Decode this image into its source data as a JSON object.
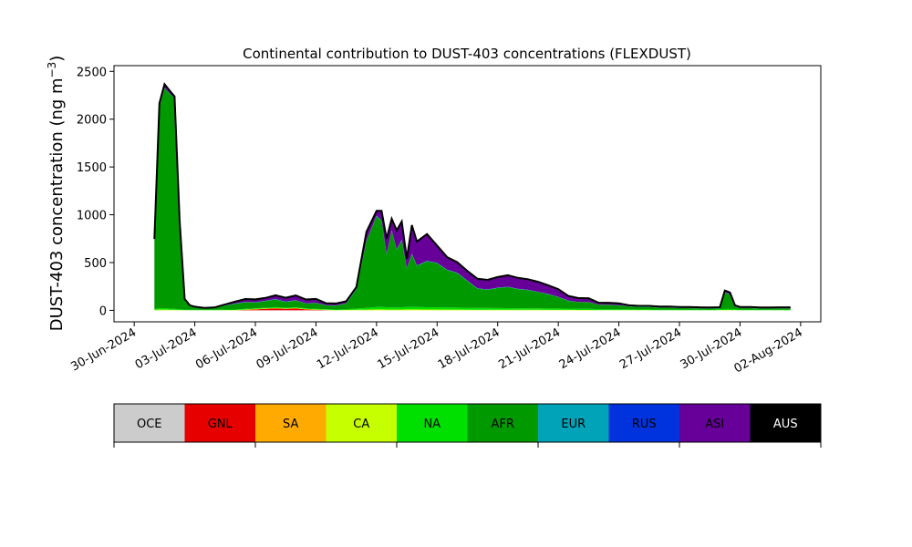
{
  "chart_data": {
    "type": "area",
    "stacked": true,
    "title": "Continental contribution to DUST-403 concentrations (FLEXDUST)",
    "ylabel": "DUST-403 concentration (ng m",
    "ylabel_unit_superscript": "−3",
    "ylabel_unit_close": ")",
    "xlim": [
      "2024-06-29",
      "2024-08-03"
    ],
    "ylim": [
      -120,
      2560
    ],
    "yticks": [
      0,
      500,
      1000,
      1500,
      2000,
      2500
    ],
    "xticks": [
      "2024-06-30",
      "2024-07-03",
      "2024-07-06",
      "2024-07-09",
      "2024-07-12",
      "2024-07-15",
      "2024-07-18",
      "2024-07-21",
      "2024-07-24",
      "2024-07-27",
      "2024-07-30",
      "2024-08-02"
    ],
    "xtick_labels": [
      "30-Jun-2024",
      "03-Jul-2024",
      "06-Jul-2024",
      "09-Jul-2024",
      "12-Jul-2024",
      "15-Jul-2024",
      "18-Jul-2024",
      "21-Jul-2024",
      "24-Jul-2024",
      "27-Jul-2024",
      "30-Jul-2024",
      "02-Aug-2024"
    ],
    "grid": false,
    "x": [
      "2024-07-01",
      "2024-07-01 06:00",
      "2024-07-01 12:00",
      "2024-07-01 18:00",
      "2024-07-02",
      "2024-07-02 06:00",
      "2024-07-02 12:00",
      "2024-07-02 18:00",
      "2024-07-03",
      "2024-07-03 06:00",
      "2024-07-03 12:00",
      "2024-07-04",
      "2024-07-04 12:00",
      "2024-07-05",
      "2024-07-05 12:00",
      "2024-07-06",
      "2024-07-06 12:00",
      "2024-07-07",
      "2024-07-07 12:00",
      "2024-07-08",
      "2024-07-08 12:00",
      "2024-07-09",
      "2024-07-09 12:00",
      "2024-07-10",
      "2024-07-10 12:00",
      "2024-07-11",
      "2024-07-11 12:00",
      "2024-07-12",
      "2024-07-12 06:00",
      "2024-07-12 12:00",
      "2024-07-12 18:00",
      "2024-07-13",
      "2024-07-13 06:00",
      "2024-07-13 12:00",
      "2024-07-13 18:00",
      "2024-07-14",
      "2024-07-14 12:00",
      "2024-07-15",
      "2024-07-15 12:00",
      "2024-07-16",
      "2024-07-16 12:00",
      "2024-07-17",
      "2024-07-17 12:00",
      "2024-07-18",
      "2024-07-18 12:00",
      "2024-07-19",
      "2024-07-19 12:00",
      "2024-07-20",
      "2024-07-20 12:00",
      "2024-07-21",
      "2024-07-21 12:00",
      "2024-07-22",
      "2024-07-22 12:00",
      "2024-07-23",
      "2024-07-23 12:00",
      "2024-07-24",
      "2024-07-24 12:00",
      "2024-07-25",
      "2024-07-25 12:00",
      "2024-07-26",
      "2024-07-26 12:00",
      "2024-07-27",
      "2024-07-27 12:00",
      "2024-07-28",
      "2024-07-28 12:00",
      "2024-07-29",
      "2024-07-29 06:00",
      "2024-07-29 12:00",
      "2024-07-29 18:00",
      "2024-07-30",
      "2024-07-30 12:00",
      "2024-07-31",
      "2024-07-31 12:00",
      "2024-08-01",
      "2024-08-01 12:00"
    ],
    "series": [
      {
        "name": "OCE",
        "color": "#cccccc",
        "values": [
          0,
          0,
          0,
          0,
          0,
          0,
          0,
          0,
          0,
          0,
          0,
          0,
          0,
          0,
          0,
          0,
          0,
          0,
          0,
          0,
          0,
          0,
          0,
          0,
          0,
          0,
          0,
          0,
          0,
          0,
          0,
          0,
          0,
          0,
          0,
          0,
          0,
          0,
          0,
          0,
          0,
          0,
          0,
          0,
          0,
          0,
          0,
          0,
          0,
          0,
          0,
          0,
          0,
          0,
          0,
          0,
          0,
          0,
          0,
          0,
          0,
          0,
          0,
          0,
          0,
          0,
          0,
          0,
          0,
          0,
          0,
          0,
          0,
          0,
          0
        ]
      },
      {
        "name": "GNL",
        "color": "#e60000",
        "values": [
          0,
          0,
          0,
          0,
          0,
          0,
          0,
          0,
          0,
          0,
          0,
          0,
          0,
          0,
          5,
          10,
          15,
          20,
          15,
          20,
          10,
          5,
          3,
          0,
          0,
          0,
          0,
          0,
          0,
          0,
          0,
          0,
          0,
          0,
          0,
          0,
          0,
          0,
          0,
          0,
          0,
          0,
          0,
          0,
          0,
          0,
          0,
          0,
          0,
          0,
          0,
          0,
          0,
          0,
          0,
          0,
          0,
          0,
          0,
          0,
          0,
          0,
          0,
          0,
          0,
          0,
          0,
          0,
          0,
          0,
          0,
          0,
          0,
          0,
          0
        ]
      },
      {
        "name": "SA",
        "color": "#ffaa00",
        "values": [
          0,
          0,
          0,
          0,
          0,
          0,
          0,
          0,
          0,
          0,
          0,
          0,
          0,
          0,
          0,
          0,
          0,
          0,
          0,
          0,
          0,
          0,
          0,
          0,
          0,
          0,
          0,
          0,
          0,
          0,
          0,
          0,
          0,
          0,
          0,
          0,
          0,
          0,
          0,
          0,
          0,
          0,
          0,
          0,
          0,
          0,
          0,
          0,
          0,
          0,
          0,
          0,
          0,
          0,
          0,
          0,
          0,
          0,
          0,
          0,
          0,
          0,
          0,
          0,
          0,
          0,
          0,
          0,
          0,
          0,
          0,
          0,
          0,
          0,
          0
        ]
      },
      {
        "name": "CA",
        "color": "#c6ff00",
        "values": [
          5,
          8,
          8,
          6,
          5,
          4,
          3,
          2,
          2,
          2,
          2,
          2,
          3,
          3,
          4,
          5,
          5,
          6,
          5,
          5,
          4,
          4,
          3,
          3,
          4,
          6,
          8,
          10,
          10,
          9,
          8,
          8,
          9,
          10,
          10,
          10,
          9,
          9,
          8,
          8,
          7,
          7,
          7,
          6,
          6,
          6,
          6,
          6,
          5,
          5,
          5,
          4,
          4,
          3,
          3,
          3,
          3,
          3,
          3,
          2,
          2,
          2,
          2,
          2,
          2,
          3,
          4,
          4,
          3,
          2,
          2,
          2,
          2,
          2,
          2
        ]
      },
      {
        "name": "NA",
        "color": "#00e000",
        "values": [
          10,
          15,
          15,
          12,
          10,
          8,
          6,
          5,
          5,
          5,
          5,
          5,
          6,
          6,
          6,
          7,
          7,
          8,
          8,
          8,
          7,
          7,
          6,
          6,
          8,
          12,
          18,
          25,
          25,
          24,
          24,
          23,
          24,
          25,
          26,
          25,
          24,
          23,
          22,
          21,
          20,
          19,
          18,
          18,
          17,
          16,
          16,
          15,
          14,
          14,
          13,
          12,
          11,
          10,
          9,
          8,
          8,
          7,
          7,
          6,
          6,
          6,
          6,
          6,
          6,
          8,
          10,
          10,
          8,
          6,
          6,
          6,
          6,
          6,
          6
        ]
      },
      {
        "name": "AFR",
        "color": "#009900",
        "values": [
          700,
          2100,
          2300,
          2250,
          2200,
          900,
          100,
          40,
          25,
          20,
          15,
          20,
          40,
          60,
          70,
          60,
          70,
          80,
          60,
          70,
          50,
          60,
          40,
          40,
          60,
          200,
          700,
          950,
          900,
          550,
          800,
          600,
          700,
          400,
          550,
          430,
          480,
          460,
          390,
          360,
          280,
          200,
          190,
          210,
          220,
          200,
          190,
          170,
          150,
          120,
          80,
          70,
          70,
          45,
          45,
          40,
          30,
          25,
          25,
          20,
          20,
          15,
          15,
          12,
          10,
          10,
          170,
          150,
          30,
          15,
          15,
          10,
          10,
          12,
          12
        ]
      },
      {
        "name": "EUR",
        "color": "#00a3b8",
        "values": [
          2,
          3,
          3,
          3,
          3,
          2,
          2,
          2,
          2,
          2,
          2,
          2,
          3,
          3,
          3,
          3,
          3,
          4,
          4,
          4,
          3,
          3,
          3,
          3,
          3,
          4,
          5,
          6,
          6,
          6,
          6,
          6,
          6,
          6,
          6,
          5,
          5,
          5,
          5,
          5,
          4,
          4,
          4,
          4,
          4,
          3,
          3,
          3,
          3,
          3,
          3,
          2,
          2,
          2,
          2,
          2,
          2,
          2,
          2,
          2,
          2,
          2,
          2,
          2,
          2,
          2,
          3,
          3,
          2,
          2,
          2,
          2,
          2,
          2,
          2
        ]
      },
      {
        "name": "RUS",
        "color": "#0033dd",
        "values": [
          0,
          0,
          0,
          0,
          0,
          0,
          0,
          0,
          0,
          0,
          0,
          0,
          0,
          0,
          0,
          0,
          0,
          0,
          0,
          0,
          0,
          0,
          0,
          0,
          0,
          0,
          0,
          0,
          0,
          0,
          0,
          0,
          0,
          0,
          0,
          0,
          0,
          0,
          0,
          0,
          0,
          0,
          0,
          0,
          0,
          0,
          0,
          0,
          0,
          0,
          0,
          0,
          0,
          0,
          0,
          0,
          0,
          0,
          0,
          0,
          0,
          0,
          0,
          0,
          0,
          0,
          0,
          0,
          0,
          0,
          0,
          0,
          0,
          0,
          0
        ]
      },
      {
        "name": "ASI",
        "color": "#660099",
        "values": [
          30,
          40,
          40,
          30,
          20,
          20,
          8,
          5,
          4,
          3,
          2,
          3,
          10,
          20,
          30,
          30,
          30,
          40,
          40,
          50,
          40,
          40,
          20,
          20,
          20,
          20,
          90,
          50,
          100,
          160,
          120,
          200,
          190,
          100,
          300,
          250,
          280,
          180,
          130,
          110,
          100,
          100,
          100,
          110,
          120,
          115,
          110,
          105,
          90,
          80,
          50,
          40,
          40,
          20,
          20,
          20,
          10,
          10,
          10,
          10,
          10,
          10,
          10,
          10,
          10,
          10,
          20,
          20,
          10,
          10,
          10,
          10,
          10,
          10,
          10
        ]
      },
      {
        "name": "AUS",
        "color": "#000000",
        "values": [
          0,
          0,
          0,
          0,
          0,
          0,
          0,
          0,
          0,
          0,
          0,
          0,
          0,
          0,
          0,
          0,
          0,
          0,
          0,
          0,
          0,
          0,
          0,
          0,
          0,
          0,
          0,
          0,
          0,
          0,
          0,
          0,
          0,
          0,
          0,
          0,
          0,
          0,
          0,
          0,
          0,
          0,
          0,
          0,
          0,
          0,
          0,
          0,
          0,
          0,
          0,
          0,
          0,
          0,
          0,
          0,
          0,
          0,
          0,
          0,
          0,
          0,
          0,
          0,
          0,
          0,
          0,
          0,
          0,
          0,
          0,
          0,
          0,
          0,
          0
        ]
      }
    ],
    "legend": {
      "placement": "bottom",
      "entries": [
        "OCE",
        "GNL",
        "SA",
        "CA",
        "NA",
        "AFR",
        "EUR",
        "RUS",
        "ASI",
        "AUS"
      ]
    }
  }
}
